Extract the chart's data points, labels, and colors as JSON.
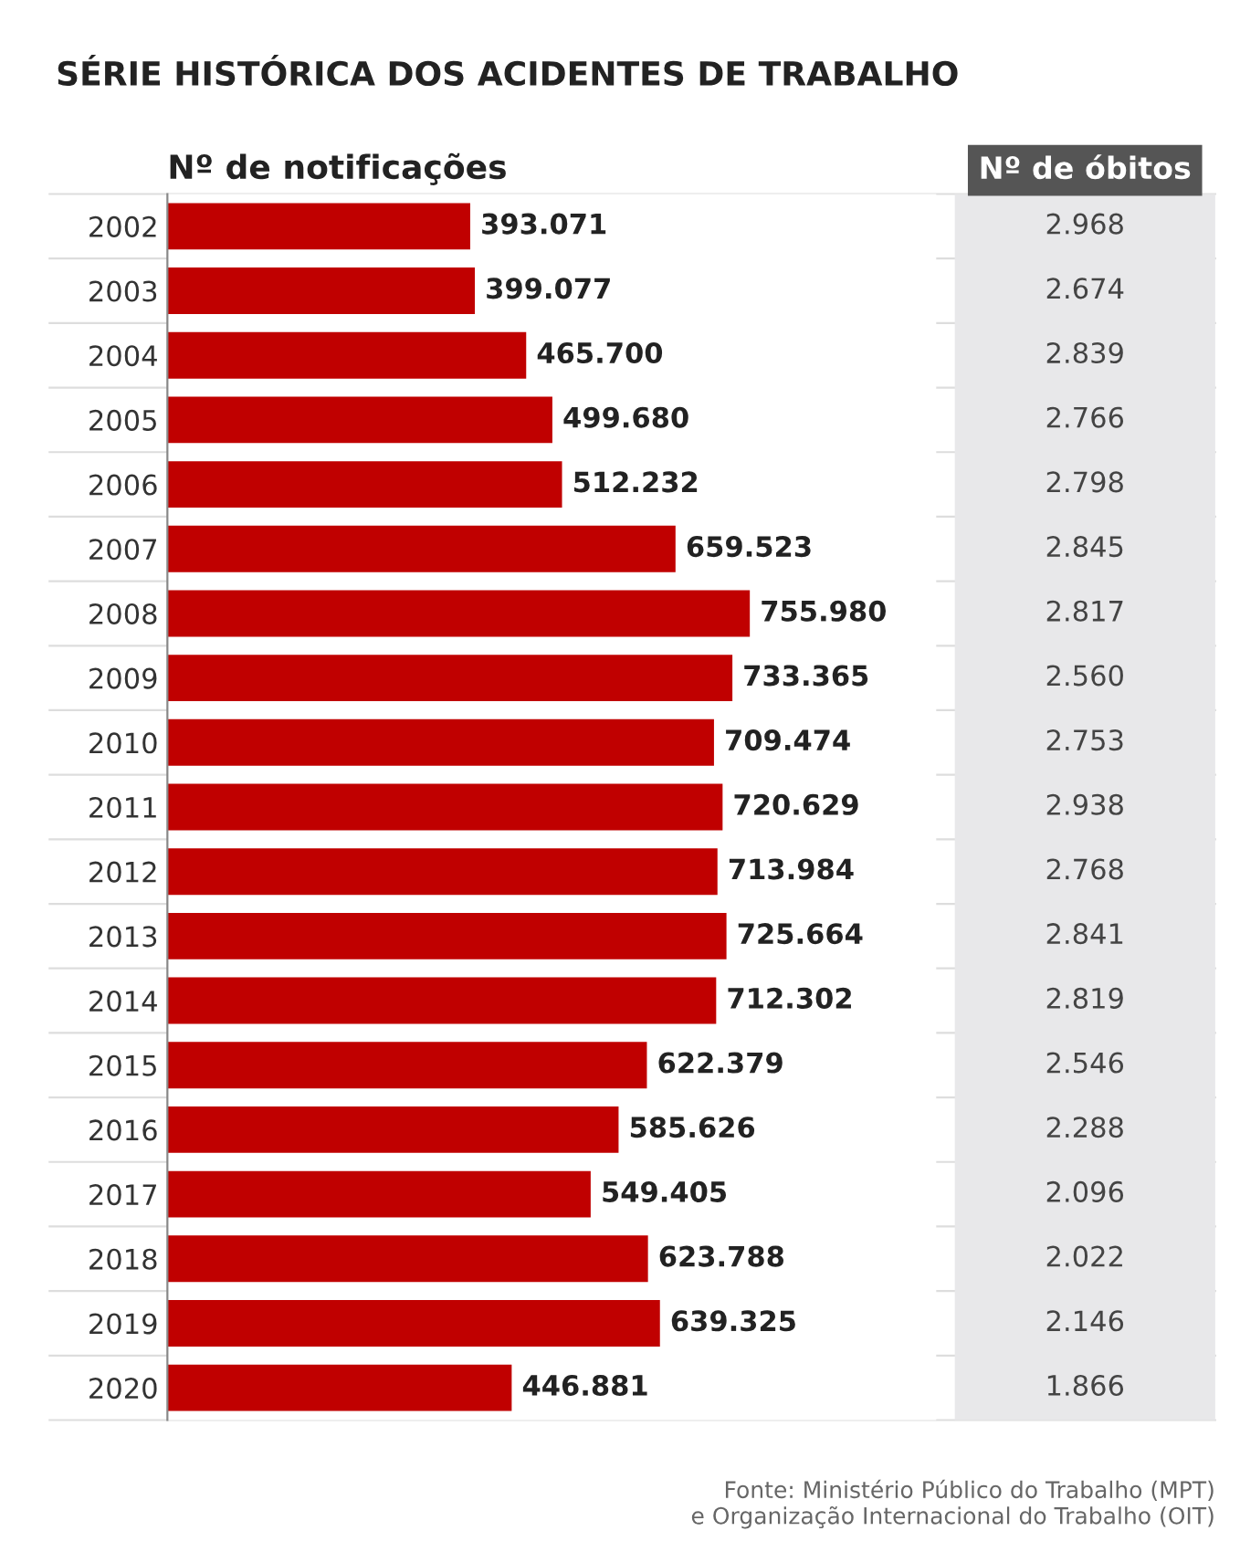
{
  "chart_data": [
    {
      "type": "bar",
      "orientation": "horizontal",
      "title": "SÉRIE HISTÓRICA DOS ACIDENTES DE TRABALHO",
      "subtitle": "Nº de notificações",
      "categories": [
        "2002",
        "2003",
        "2004",
        "2005",
        "2006",
        "2007",
        "2008",
        "2009",
        "2010",
        "2011",
        "2012",
        "2013",
        "2014",
        "2015",
        "2016",
        "2017",
        "2018",
        "2019",
        "2020"
      ],
      "values": [
        393071,
        399077,
        465700,
        499680,
        512232,
        659523,
        755980,
        733365,
        709474,
        720629,
        713984,
        725664,
        712302,
        622379,
        585626,
        549405,
        623788,
        639325,
        446881
      ],
      "value_labels": [
        "393.071",
        "399.077",
        "465.700",
        "499.680",
        "512.232",
        "659.523",
        "755.980",
        "733.365",
        "709.474",
        "720.629",
        "713.984",
        "725.664",
        "712.302",
        "622.379",
        "585.626",
        "549.405",
        "623.788",
        "639.325",
        "446.881"
      ],
      "color": "#c00000",
      "tick_labels": "y",
      "grid": false
    },
    {
      "type": "other",
      "title": "Nº de óbitos",
      "color": "#e8e8ea",
      "values": [
        2968,
        2674,
        2839,
        2766,
        2798,
        2845,
        2817,
        2560,
        2753,
        2938,
        2768,
        2841,
        2819,
        2546,
        2288,
        2096,
        2022,
        2146,
        1866
      ],
      "value_labels": [
        "2.968",
        "2.674",
        "2.839",
        "2.766",
        "2.798",
        "2.845",
        "2.817",
        "2.560",
        "2.753",
        "2.938",
        "2.768",
        "2.841",
        "2.819",
        "2.546",
        "2.288",
        "2.096",
        "2.022",
        "2.146",
        "1.866"
      ],
      "annotations": [
        "Fonte: Ministério Público do Trabalho (MPT)\ne Organização Internacional do Trabalho (OIT)"
      ]
    }
  ]
}
